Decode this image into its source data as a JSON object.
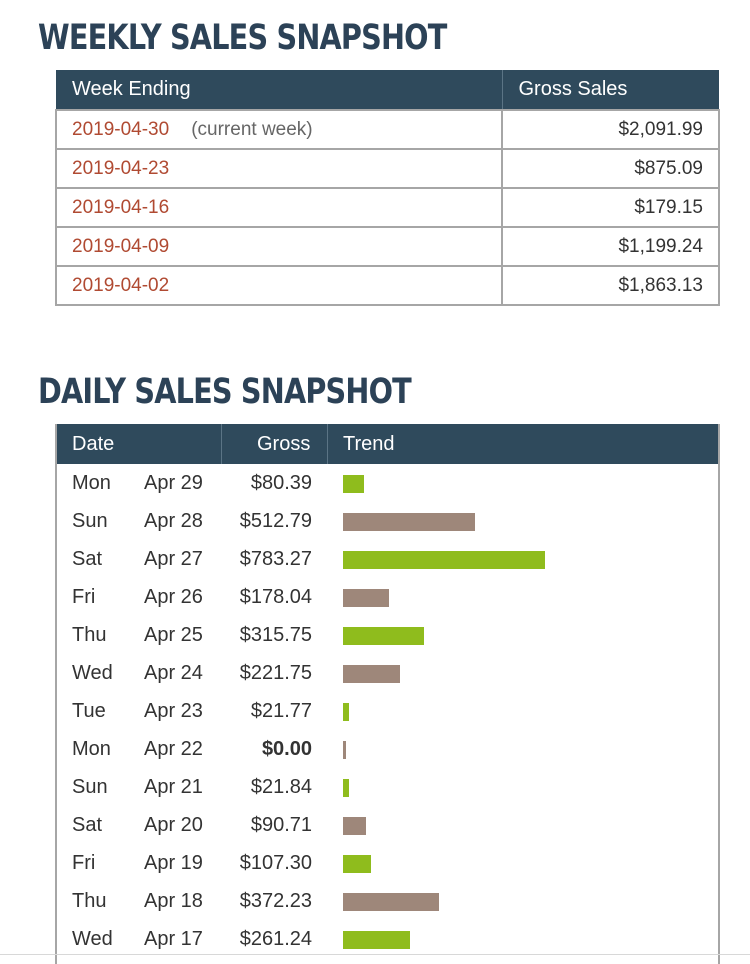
{
  "weekly": {
    "title": "WEEKLY SALES SNAPSHOT",
    "headers": {
      "week": "Week Ending",
      "gross": "Gross Sales"
    },
    "current_note": "(current week)",
    "rows": [
      {
        "week": "2019-04-30",
        "gross": "$2,091.99"
      },
      {
        "week": "2019-04-23",
        "gross": "$875.09"
      },
      {
        "week": "2019-04-16",
        "gross": "$179.15"
      },
      {
        "week": "2019-04-09",
        "gross": "$1,199.24"
      },
      {
        "week": "2019-04-02",
        "gross": "$1,863.13"
      }
    ]
  },
  "daily": {
    "title": "DAILY SALES SNAPSHOT",
    "headers": {
      "date": "Date",
      "gross": "Gross",
      "trend": "Trend"
    },
    "colors": {
      "green": "#8fbc1d",
      "brown": "#9e877a"
    },
    "rows": [
      {
        "day": "Mon",
        "date": "Apr 29",
        "gross": "$80.39",
        "value": 80.39
      },
      {
        "day": "Sun",
        "date": "Apr 28",
        "gross": "$512.79",
        "value": 512.79
      },
      {
        "day": "Sat",
        "date": "Apr 27",
        "gross": "$783.27",
        "value": 783.27
      },
      {
        "day": "Fri",
        "date": "Apr 26",
        "gross": "$178.04",
        "value": 178.04
      },
      {
        "day": "Thu",
        "date": "Apr 25",
        "gross": "$315.75",
        "value": 315.75
      },
      {
        "day": "Wed",
        "date": "Apr 24",
        "gross": "$221.75",
        "value": 221.75
      },
      {
        "day": "Tue",
        "date": "Apr 23",
        "gross": "$21.77",
        "value": 21.77
      },
      {
        "day": "Mon",
        "date": "Apr 22",
        "gross": "$0.00",
        "value": 0
      },
      {
        "day": "Sun",
        "date": "Apr 21",
        "gross": "$21.84",
        "value": 21.84
      },
      {
        "day": "Sat",
        "date": "Apr 20",
        "gross": "$90.71",
        "value": 90.71
      },
      {
        "day": "Fri",
        "date": "Apr 19",
        "gross": "$107.30",
        "value": 107.3
      },
      {
        "day": "Thu",
        "date": "Apr 18",
        "gross": "$372.23",
        "value": 372.23
      },
      {
        "day": "Wed",
        "date": "Apr 17",
        "gross": "$261.24",
        "value": 261.24
      }
    ]
  }
}
